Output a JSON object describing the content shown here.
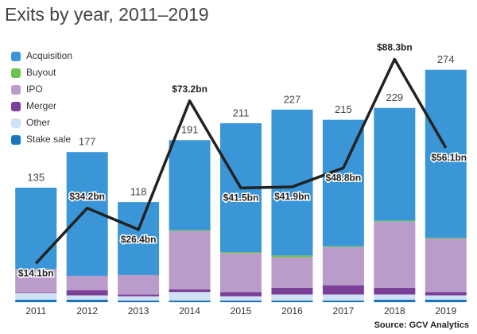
{
  "chart_data": {
    "type": "stacked-bar-line",
    "title": "Exits by year, 2011–2019",
    "source": "Source: GCV Analytics",
    "categories": [
      "2011",
      "2012",
      "2013",
      "2014",
      "2015",
      "2016",
      "2017",
      "2018",
      "2019"
    ],
    "series": [
      {
        "name": "Acquisition",
        "color": "#3a96d6",
        "values": [
          96,
          146,
          86,
          106,
          152,
          172,
          149,
          133,
          198
        ]
      },
      {
        "name": "Buyout",
        "color": "#6cc24a",
        "values": [
          0,
          0,
          0,
          1,
          1,
          2,
          1,
          1,
          1
        ]
      },
      {
        "name": "IPO",
        "color": "#b99cc9",
        "values": [
          27,
          17,
          23,
          69,
          46,
          36,
          45,
          78,
          63
        ]
      },
      {
        "name": "Merger",
        "color": "#7b3f98",
        "values": [
          1,
          6,
          2,
          3,
          5,
          8,
          11,
          8,
          4
        ]
      },
      {
        "name": "Other",
        "color": "#cfe2f3",
        "values": [
          8,
          5,
          5,
          10,
          5,
          7,
          7,
          6,
          5
        ]
      },
      {
        "name": "Stake sale",
        "color": "#1b75bc",
        "values": [
          3,
          3,
          2,
          2,
          2,
          2,
          2,
          3,
          3
        ]
      }
    ],
    "totals": [
      135,
      177,
      118,
      191,
      211,
      227,
      215,
      229,
      274
    ],
    "line": {
      "axis": "y2",
      "color": "#222222",
      "values": [
        14.1,
        34.2,
        26.4,
        73.2,
        41.5,
        41.9,
        48.8,
        88.3,
        56.1
      ],
      "value_labels": [
        "$14.1bn",
        "$34.2bn",
        "$26.4bn",
        "$73.2bn",
        "$41.5bn",
        "$41.9bn",
        "$48.8bn",
        "$88.3bn",
        "$56.1bn"
      ]
    },
    "ylim": [
      0,
      300
    ],
    "y2lim": [
      0,
      92.5
    ]
  }
}
